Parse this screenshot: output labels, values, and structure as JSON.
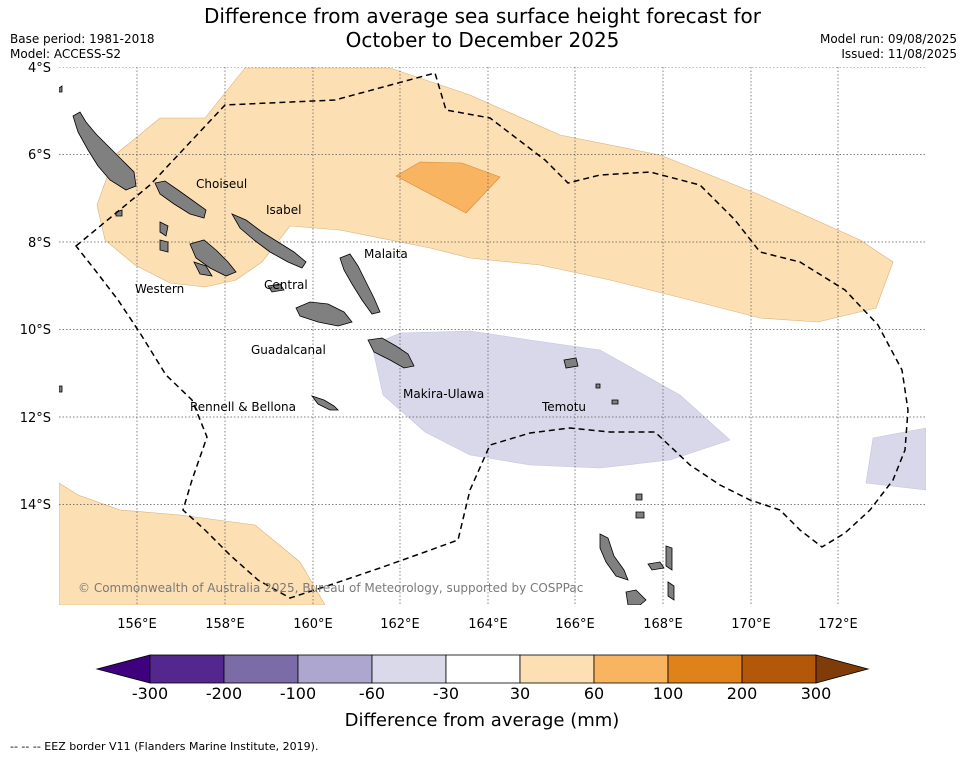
{
  "header": {
    "title_line1": "Difference from average sea surface height forecast for",
    "title_line2": "October to December 2025",
    "base_period": "Base period: 1981-2018",
    "model": "Model: ACCESS-S2",
    "model_run": "Model run: 09/08/2025",
    "issued": "Issued: 11/08/2025"
  },
  "map": {
    "lat_labels": [
      "4°S",
      "6°S",
      "8°S",
      "10°S",
      "12°S",
      "14°S"
    ],
    "lon_labels": [
      "156°E",
      "158°E",
      "160°E",
      "162°E",
      "164°E",
      "166°E",
      "168°E",
      "170°E",
      "172°E"
    ],
    "regions": [
      "Choiseul",
      "Isabel",
      "Malaita",
      "Western",
      "Central",
      "Guadalcanal",
      "Makira-Ulawa",
      "Temotu",
      "Rennell & Bellona"
    ],
    "copyright": "© Commonwealth of Australia 2025, Bureau of Meteorology, supported by COSPPac",
    "land_color": "#808080",
    "eez_line_style": "dashed"
  },
  "colorbar": {
    "title": "Difference from average (mm)",
    "ticks": [
      "-300",
      "-200",
      "-100",
      "-60",
      "-30",
      "30",
      "60",
      "100",
      "200",
      "300"
    ],
    "colors": [
      "#3f007d",
      "#54278f",
      "#7b6ca8",
      "#ada6cf",
      "#d9d9ea",
      "#ffffff",
      "#fddfb4",
      "#f9b462",
      "#e0821a",
      "#b25808",
      "#7f3b08"
    ]
  },
  "footer": {
    "eez_note": "--  --  -- EEZ border V11 (Flanders Marine Institute, 2019)."
  }
}
